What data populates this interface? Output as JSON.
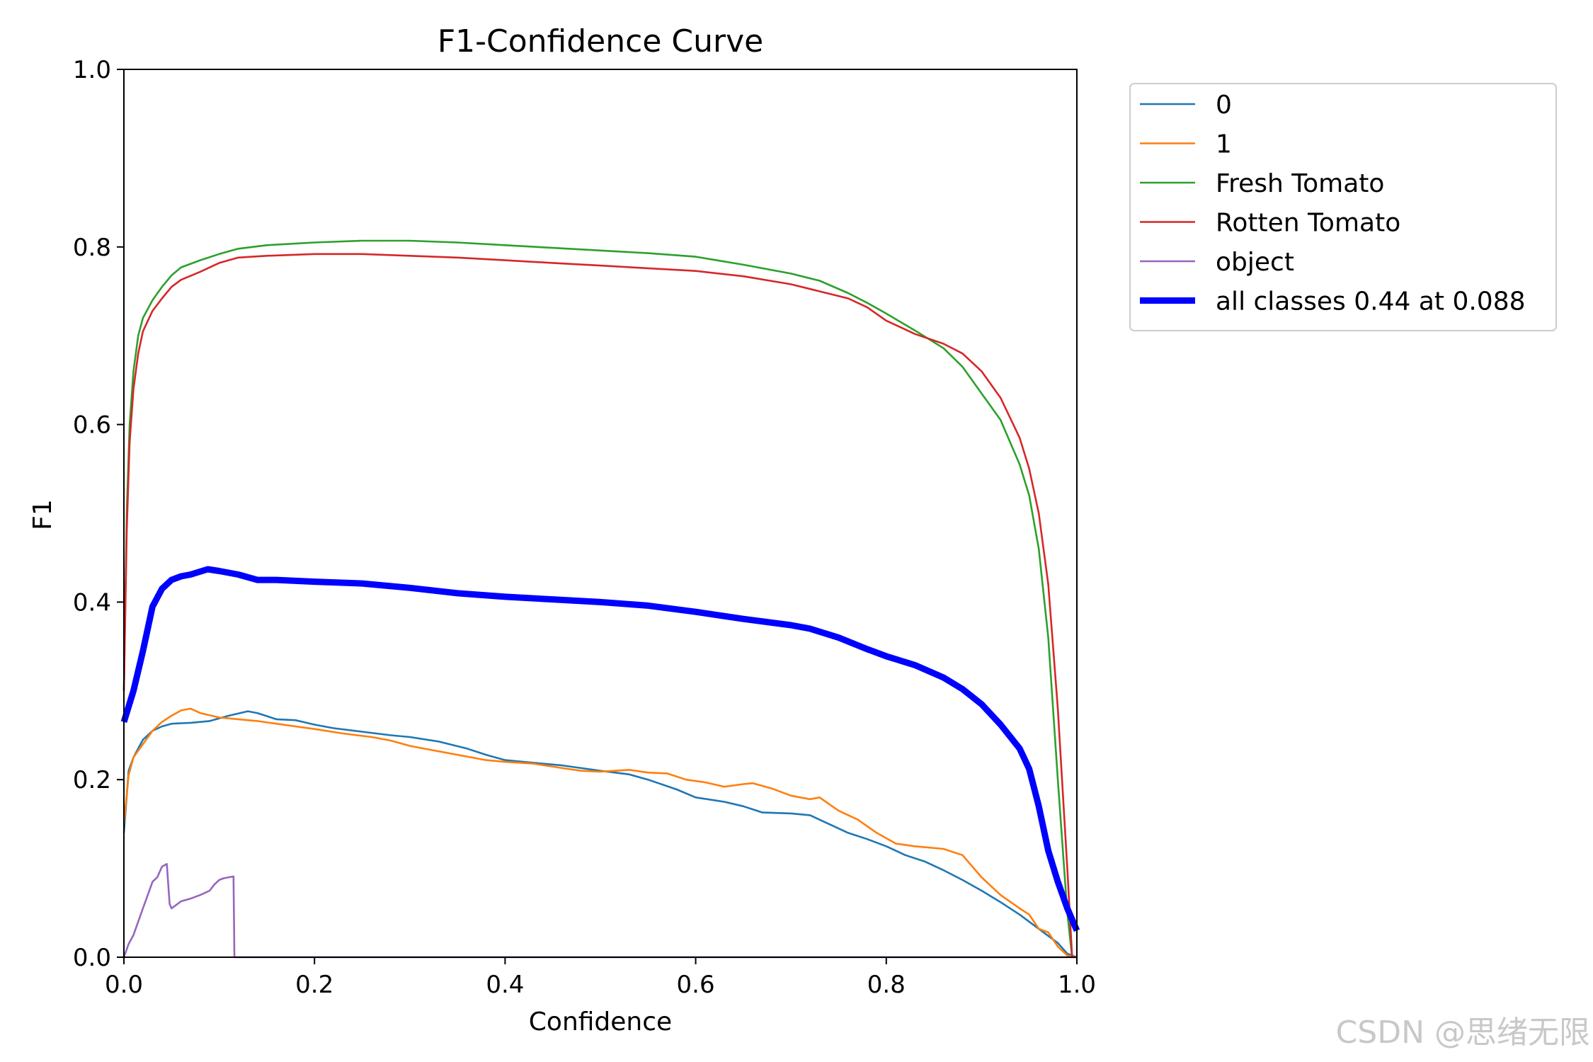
{
  "chart_data": {
    "type": "line",
    "title": "F1-Confidence Curve",
    "xlabel": "Confidence",
    "ylabel": "F1",
    "xlim": [
      0.0,
      1.0
    ],
    "ylim": [
      0.0,
      1.0
    ],
    "xticks": [
      "0.0",
      "0.2",
      "0.4",
      "0.6",
      "0.8",
      "1.0"
    ],
    "yticks": [
      "0.0",
      "0.2",
      "0.4",
      "0.6",
      "0.8",
      "1.0"
    ],
    "grid": false,
    "legend_position": "outside-right-top",
    "series": [
      {
        "name": "0",
        "color": "#1f77b4",
        "points": [
          [
            0.0,
            0.14
          ],
          [
            0.005,
            0.21
          ],
          [
            0.01,
            0.225
          ],
          [
            0.02,
            0.245
          ],
          [
            0.03,
            0.255
          ],
          [
            0.04,
            0.26
          ],
          [
            0.05,
            0.263
          ],
          [
            0.07,
            0.264
          ],
          [
            0.09,
            0.266
          ],
          [
            0.11,
            0.272
          ],
          [
            0.13,
            0.277
          ],
          [
            0.14,
            0.275
          ],
          [
            0.16,
            0.268
          ],
          [
            0.18,
            0.267
          ],
          [
            0.2,
            0.262
          ],
          [
            0.22,
            0.258
          ],
          [
            0.25,
            0.254
          ],
          [
            0.28,
            0.25
          ],
          [
            0.3,
            0.248
          ],
          [
            0.33,
            0.243
          ],
          [
            0.36,
            0.235
          ],
          [
            0.38,
            0.228
          ],
          [
            0.4,
            0.222
          ],
          [
            0.43,
            0.219
          ],
          [
            0.46,
            0.216
          ],
          [
            0.48,
            0.213
          ],
          [
            0.5,
            0.21
          ],
          [
            0.53,
            0.206
          ],
          [
            0.55,
            0.2
          ],
          [
            0.58,
            0.189
          ],
          [
            0.6,
            0.18
          ],
          [
            0.63,
            0.175
          ],
          [
            0.65,
            0.17
          ],
          [
            0.67,
            0.163
          ],
          [
            0.7,
            0.162
          ],
          [
            0.72,
            0.16
          ],
          [
            0.74,
            0.15
          ],
          [
            0.76,
            0.14
          ],
          [
            0.78,
            0.133
          ],
          [
            0.8,
            0.125
          ],
          [
            0.82,
            0.115
          ],
          [
            0.84,
            0.108
          ],
          [
            0.86,
            0.098
          ],
          [
            0.88,
            0.087
          ],
          [
            0.9,
            0.075
          ],
          [
            0.92,
            0.062
          ],
          [
            0.94,
            0.048
          ],
          [
            0.96,
            0.032
          ],
          [
            0.98,
            0.016
          ],
          [
            0.99,
            0.004
          ],
          [
            1.0,
            0.0
          ]
        ]
      },
      {
        "name": "1",
        "color": "#ff7f0e",
        "points": [
          [
            0.0,
            0.15
          ],
          [
            0.005,
            0.205
          ],
          [
            0.01,
            0.225
          ],
          [
            0.02,
            0.24
          ],
          [
            0.03,
            0.255
          ],
          [
            0.04,
            0.265
          ],
          [
            0.05,
            0.272
          ],
          [
            0.06,
            0.278
          ],
          [
            0.07,
            0.28
          ],
          [
            0.08,
            0.275
          ],
          [
            0.1,
            0.27
          ],
          [
            0.12,
            0.268
          ],
          [
            0.14,
            0.266
          ],
          [
            0.16,
            0.263
          ],
          [
            0.18,
            0.26
          ],
          [
            0.2,
            0.257
          ],
          [
            0.23,
            0.252
          ],
          [
            0.26,
            0.248
          ],
          [
            0.28,
            0.244
          ],
          [
            0.3,
            0.238
          ],
          [
            0.33,
            0.232
          ],
          [
            0.36,
            0.226
          ],
          [
            0.38,
            0.222
          ],
          [
            0.4,
            0.22
          ],
          [
            0.43,
            0.218
          ],
          [
            0.46,
            0.213
          ],
          [
            0.48,
            0.21
          ],
          [
            0.5,
            0.209
          ],
          [
            0.53,
            0.211
          ],
          [
            0.55,
            0.208
          ],
          [
            0.57,
            0.207
          ],
          [
            0.59,
            0.2
          ],
          [
            0.61,
            0.197
          ],
          [
            0.63,
            0.192
          ],
          [
            0.65,
            0.195
          ],
          [
            0.66,
            0.196
          ],
          [
            0.68,
            0.19
          ],
          [
            0.7,
            0.182
          ],
          [
            0.72,
            0.178
          ],
          [
            0.73,
            0.18
          ],
          [
            0.75,
            0.165
          ],
          [
            0.77,
            0.155
          ],
          [
            0.79,
            0.14
          ],
          [
            0.81,
            0.128
          ],
          [
            0.83,
            0.125
          ],
          [
            0.86,
            0.122
          ],
          [
            0.88,
            0.115
          ],
          [
            0.9,
            0.09
          ],
          [
            0.92,
            0.07
          ],
          [
            0.94,
            0.055
          ],
          [
            0.95,
            0.048
          ],
          [
            0.96,
            0.032
          ],
          [
            0.97,
            0.028
          ],
          [
            0.98,
            0.012
          ],
          [
            0.99,
            0.002
          ],
          [
            1.0,
            0.0
          ]
        ]
      },
      {
        "name": "Fresh Tomato",
        "color": "#2ca02c",
        "points": [
          [
            0.0,
            0.3
          ],
          [
            0.003,
            0.5
          ],
          [
            0.006,
            0.6
          ],
          [
            0.01,
            0.66
          ],
          [
            0.015,
            0.7
          ],
          [
            0.02,
            0.72
          ],
          [
            0.03,
            0.74
          ],
          [
            0.04,
            0.755
          ],
          [
            0.05,
            0.768
          ],
          [
            0.06,
            0.777
          ],
          [
            0.08,
            0.785
          ],
          [
            0.1,
            0.792
          ],
          [
            0.12,
            0.798
          ],
          [
            0.15,
            0.802
          ],
          [
            0.2,
            0.805
          ],
          [
            0.25,
            0.807
          ],
          [
            0.3,
            0.807
          ],
          [
            0.35,
            0.805
          ],
          [
            0.4,
            0.802
          ],
          [
            0.45,
            0.799
          ],
          [
            0.5,
            0.796
          ],
          [
            0.55,
            0.793
          ],
          [
            0.6,
            0.789
          ],
          [
            0.65,
            0.78
          ],
          [
            0.7,
            0.77
          ],
          [
            0.73,
            0.762
          ],
          [
            0.76,
            0.748
          ],
          [
            0.78,
            0.737
          ],
          [
            0.8,
            0.725
          ],
          [
            0.83,
            0.706
          ],
          [
            0.86,
            0.686
          ],
          [
            0.88,
            0.665
          ],
          [
            0.9,
            0.635
          ],
          [
            0.92,
            0.605
          ],
          [
            0.94,
            0.555
          ],
          [
            0.95,
            0.52
          ],
          [
            0.96,
            0.46
          ],
          [
            0.97,
            0.36
          ],
          [
            0.98,
            0.2
          ],
          [
            0.99,
            0.05
          ],
          [
            0.995,
            0.0
          ]
        ]
      },
      {
        "name": "Rotten Tomato",
        "color": "#d62728",
        "points": [
          [
            0.0,
            0.3
          ],
          [
            0.003,
            0.48
          ],
          [
            0.006,
            0.58
          ],
          [
            0.01,
            0.64
          ],
          [
            0.015,
            0.68
          ],
          [
            0.02,
            0.705
          ],
          [
            0.03,
            0.728
          ],
          [
            0.04,
            0.742
          ],
          [
            0.05,
            0.755
          ],
          [
            0.06,
            0.763
          ],
          [
            0.08,
            0.772
          ],
          [
            0.1,
            0.782
          ],
          [
            0.12,
            0.788
          ],
          [
            0.15,
            0.79
          ],
          [
            0.2,
            0.792
          ],
          [
            0.25,
            0.792
          ],
          [
            0.3,
            0.79
          ],
          [
            0.35,
            0.788
          ],
          [
            0.4,
            0.785
          ],
          [
            0.45,
            0.782
          ],
          [
            0.5,
            0.779
          ],
          [
            0.55,
            0.776
          ],
          [
            0.6,
            0.773
          ],
          [
            0.65,
            0.767
          ],
          [
            0.7,
            0.758
          ],
          [
            0.73,
            0.75
          ],
          [
            0.76,
            0.742
          ],
          [
            0.78,
            0.732
          ],
          [
            0.8,
            0.717
          ],
          [
            0.83,
            0.702
          ],
          [
            0.86,
            0.691
          ],
          [
            0.88,
            0.68
          ],
          [
            0.9,
            0.66
          ],
          [
            0.92,
            0.63
          ],
          [
            0.94,
            0.585
          ],
          [
            0.95,
            0.55
          ],
          [
            0.96,
            0.5
          ],
          [
            0.97,
            0.42
          ],
          [
            0.98,
            0.28
          ],
          [
            0.99,
            0.1
          ],
          [
            0.995,
            0.0
          ]
        ]
      },
      {
        "name": "object",
        "color": "#9467bd",
        "points": [
          [
            0.0,
            0.0
          ],
          [
            0.005,
            0.015
          ],
          [
            0.01,
            0.025
          ],
          [
            0.015,
            0.04
          ],
          [
            0.02,
            0.055
          ],
          [
            0.025,
            0.07
          ],
          [
            0.03,
            0.085
          ],
          [
            0.035,
            0.09
          ],
          [
            0.04,
            0.102
          ],
          [
            0.045,
            0.105
          ],
          [
            0.048,
            0.06
          ],
          [
            0.05,
            0.055
          ],
          [
            0.06,
            0.063
          ],
          [
            0.07,
            0.066
          ],
          [
            0.08,
            0.07
          ],
          [
            0.09,
            0.075
          ],
          [
            0.095,
            0.082
          ],
          [
            0.1,
            0.087
          ],
          [
            0.105,
            0.089
          ],
          [
            0.115,
            0.091
          ],
          [
            0.116,
            0.0
          ],
          [
            1.0,
            0.0
          ]
        ]
      },
      {
        "name": "all classes 0.44 at 0.088",
        "color": "#0000ff",
        "thick": true,
        "points": [
          [
            0.0,
            0.265
          ],
          [
            0.01,
            0.3
          ],
          [
            0.02,
            0.345
          ],
          [
            0.03,
            0.395
          ],
          [
            0.04,
            0.415
          ],
          [
            0.05,
            0.425
          ],
          [
            0.06,
            0.429
          ],
          [
            0.07,
            0.431
          ],
          [
            0.088,
            0.437
          ],
          [
            0.1,
            0.435
          ],
          [
            0.12,
            0.431
          ],
          [
            0.14,
            0.425
          ],
          [
            0.16,
            0.425
          ],
          [
            0.2,
            0.423
          ],
          [
            0.25,
            0.421
          ],
          [
            0.3,
            0.416
          ],
          [
            0.35,
            0.41
          ],
          [
            0.4,
            0.406
          ],
          [
            0.45,
            0.403
          ],
          [
            0.5,
            0.4
          ],
          [
            0.55,
            0.396
          ],
          [
            0.6,
            0.389
          ],
          [
            0.65,
            0.381
          ],
          [
            0.7,
            0.374
          ],
          [
            0.72,
            0.37
          ],
          [
            0.75,
            0.36
          ],
          [
            0.78,
            0.347
          ],
          [
            0.8,
            0.339
          ],
          [
            0.83,
            0.329
          ],
          [
            0.86,
            0.315
          ],
          [
            0.88,
            0.302
          ],
          [
            0.9,
            0.285
          ],
          [
            0.92,
            0.262
          ],
          [
            0.94,
            0.235
          ],
          [
            0.95,
            0.212
          ],
          [
            0.96,
            0.17
          ],
          [
            0.97,
            0.12
          ],
          [
            0.98,
            0.085
          ],
          [
            0.99,
            0.055
          ],
          [
            1.0,
            0.03
          ]
        ]
      }
    ]
  },
  "watermark": "CSDN @思绪无限"
}
